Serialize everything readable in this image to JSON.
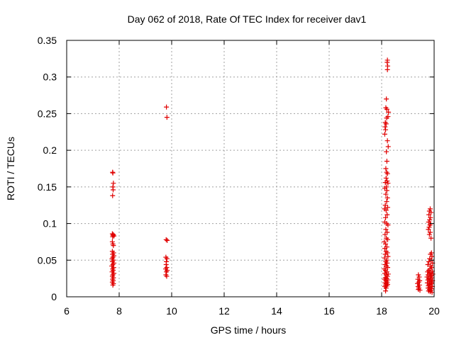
{
  "chart_data": {
    "type": "scatter",
    "title": "Day 062 of 2018, Rate Of TEC Index for receiver dav1",
    "xlabel": "GPS time / hours",
    "ylabel": "ROTI / TECUs",
    "xlim": [
      6,
      20
    ],
    "ylim": [
      0,
      0.35
    ],
    "xticks": [
      6,
      8,
      10,
      12,
      14,
      16,
      18,
      20
    ],
    "xtick_labels": [
      "6",
      "8",
      "10",
      "12",
      "14",
      "16",
      "18",
      "20"
    ],
    "yticks": [
      0,
      0.05,
      0.1,
      0.15,
      0.2,
      0.25,
      0.3,
      0.35
    ],
    "ytick_labels": [
      "0",
      "0.05",
      "0.1",
      "0.15",
      "0.2",
      "0.25",
      "0.3",
      "0.35"
    ],
    "grid": true,
    "marker": "+",
    "color": "#e00000",
    "points": [
      [
        7.75,
        0.17
      ],
      [
        7.76,
        0.169
      ],
      [
        7.78,
        0.155
      ],
      [
        7.76,
        0.15
      ],
      [
        7.77,
        0.146
      ],
      [
        7.75,
        0.138
      ],
      [
        7.74,
        0.086
      ],
      [
        7.78,
        0.085
      ],
      [
        7.76,
        0.084
      ],
      [
        7.8,
        0.083
      ],
      [
        7.75,
        0.082
      ],
      [
        7.74,
        0.075
      ],
      [
        7.76,
        0.072
      ],
      [
        7.78,
        0.07
      ],
      [
        7.74,
        0.062
      ],
      [
        7.79,
        0.06
      ],
      [
        7.75,
        0.058
      ],
      [
        7.8,
        0.056
      ],
      [
        7.76,
        0.054
      ],
      [
        7.73,
        0.052
      ],
      [
        7.78,
        0.05
      ],
      [
        7.74,
        0.048
      ],
      [
        7.8,
        0.046
      ],
      [
        7.76,
        0.044
      ],
      [
        7.72,
        0.042
      ],
      [
        7.79,
        0.04
      ],
      [
        7.75,
        0.038
      ],
      [
        7.77,
        0.036
      ],
      [
        7.73,
        0.034
      ],
      [
        7.8,
        0.032
      ],
      [
        7.76,
        0.03
      ],
      [
        7.74,
        0.028
      ],
      [
        7.78,
        0.026
      ],
      [
        7.75,
        0.024
      ],
      [
        7.77,
        0.022
      ],
      [
        7.74,
        0.02
      ],
      [
        7.78,
        0.018
      ],
      [
        7.76,
        0.016
      ],
      [
        9.8,
        0.259
      ],
      [
        9.82,
        0.245
      ],
      [
        9.79,
        0.078
      ],
      [
        9.83,
        0.077
      ],
      [
        9.78,
        0.054
      ],
      [
        9.82,
        0.052
      ],
      [
        9.8,
        0.048
      ],
      [
        9.79,
        0.044
      ],
      [
        9.81,
        0.04
      ],
      [
        9.77,
        0.038
      ],
      [
        9.83,
        0.036
      ],
      [
        9.8,
        0.034
      ],
      [
        9.78,
        0.03
      ],
      [
        9.81,
        0.028
      ],
      [
        18.22,
        0.323
      ],
      [
        18.21,
        0.32
      ],
      [
        18.23,
        0.315
      ],
      [
        18.22,
        0.31
      ],
      [
        18.18,
        0.27
      ],
      [
        18.16,
        0.258
      ],
      [
        18.2,
        0.256
      ],
      [
        18.26,
        0.252
      ],
      [
        18.24,
        0.246
      ],
      [
        18.19,
        0.244
      ],
      [
        18.14,
        0.238
      ],
      [
        18.17,
        0.236
      ],
      [
        18.13,
        0.232
      ],
      [
        18.15,
        0.228
      ],
      [
        18.12,
        0.222
      ],
      [
        18.22,
        0.213
      ],
      [
        18.25,
        0.205
      ],
      [
        18.18,
        0.198
      ],
      [
        18.2,
        0.185
      ],
      [
        18.16,
        0.175
      ],
      [
        18.19,
        0.17
      ],
      [
        18.22,
        0.168
      ],
      [
        18.17,
        0.162
      ],
      [
        18.21,
        0.158
      ],
      [
        18.14,
        0.156
      ],
      [
        18.24,
        0.155
      ],
      [
        18.18,
        0.15
      ],
      [
        18.12,
        0.148
      ],
      [
        18.2,
        0.145
      ],
      [
        18.16,
        0.14
      ],
      [
        18.22,
        0.135
      ],
      [
        18.19,
        0.13
      ],
      [
        18.14,
        0.125
      ],
      [
        18.23,
        0.122
      ],
      [
        18.11,
        0.12
      ],
      [
        18.17,
        0.118
      ],
      [
        18.21,
        0.112
      ],
      [
        18.15,
        0.108
      ],
      [
        18.12,
        0.102
      ],
      [
        18.19,
        0.1
      ],
      [
        18.24,
        0.098
      ],
      [
        18.16,
        0.092
      ],
      [
        18.21,
        0.088
      ],
      [
        18.13,
        0.085
      ],
      [
        18.18,
        0.08
      ],
      [
        18.23,
        0.078
      ],
      [
        18.1,
        0.075
      ],
      [
        18.15,
        0.072
      ],
      [
        18.2,
        0.068
      ],
      [
        18.12,
        0.066
      ],
      [
        18.17,
        0.062
      ],
      [
        18.22,
        0.06
      ],
      [
        18.14,
        0.058
      ],
      [
        18.24,
        0.055
      ],
      [
        18.11,
        0.053
      ],
      [
        18.19,
        0.05
      ],
      [
        18.16,
        0.048
      ],
      [
        18.21,
        0.046
      ],
      [
        18.13,
        0.044
      ],
      [
        18.18,
        0.042
      ],
      [
        18.23,
        0.04
      ],
      [
        18.1,
        0.038
      ],
      [
        18.15,
        0.036
      ],
      [
        18.2,
        0.034
      ],
      [
        18.12,
        0.032
      ],
      [
        18.25,
        0.031
      ],
      [
        18.17,
        0.03
      ],
      [
        18.22,
        0.028
      ],
      [
        18.14,
        0.026
      ],
      [
        18.19,
        0.025
      ],
      [
        18.11,
        0.024
      ],
      [
        18.24,
        0.023
      ],
      [
        18.16,
        0.022
      ],
      [
        18.21,
        0.02
      ],
      [
        18.13,
        0.019
      ],
      [
        18.18,
        0.018
      ],
      [
        18.23,
        0.017
      ],
      [
        18.15,
        0.016
      ],
      [
        18.2,
        0.015
      ],
      [
        18.12,
        0.014
      ],
      [
        18.17,
        0.012
      ],
      [
        18.15,
        0.008
      ],
      [
        19.4,
        0.03
      ],
      [
        19.43,
        0.027
      ],
      [
        19.38,
        0.024
      ],
      [
        19.45,
        0.022
      ],
      [
        19.41,
        0.02
      ],
      [
        19.37,
        0.018
      ],
      [
        19.44,
        0.016
      ],
      [
        19.39,
        0.014
      ],
      [
        19.42,
        0.012
      ],
      [
        19.4,
        0.01
      ],
      [
        19.46,
        0.009
      ],
      [
        19.85,
        0.12
      ],
      [
        19.82,
        0.117
      ],
      [
        19.88,
        0.115
      ],
      [
        19.8,
        0.112
      ],
      [
        19.86,
        0.108
      ],
      [
        19.83,
        0.105
      ],
      [
        19.79,
        0.102
      ],
      [
        19.87,
        0.1
      ],
      [
        19.84,
        0.098
      ],
      [
        19.81,
        0.095
      ],
      [
        19.78,
        0.092
      ],
      [
        19.85,
        0.088
      ],
      [
        19.82,
        0.085
      ],
      [
        19.88,
        0.08
      ],
      [
        19.9,
        0.06
      ],
      [
        19.86,
        0.058
      ],
      [
        19.92,
        0.055
      ],
      [
        19.83,
        0.052
      ],
      [
        19.89,
        0.05
      ],
      [
        19.8,
        0.048
      ],
      [
        19.94,
        0.046
      ],
      [
        19.76,
        0.044
      ],
      [
        19.87,
        0.042
      ],
      [
        19.91,
        0.04
      ],
      [
        19.84,
        0.038
      ],
      [
        19.79,
        0.036
      ],
      [
        19.93,
        0.035
      ],
      [
        19.75,
        0.034
      ],
      [
        19.88,
        0.033
      ],
      [
        19.82,
        0.032
      ],
      [
        19.95,
        0.031
      ],
      [
        19.77,
        0.03
      ],
      [
        19.9,
        0.029
      ],
      [
        19.85,
        0.028
      ],
      [
        19.73,
        0.027
      ],
      [
        19.92,
        0.026
      ],
      [
        19.8,
        0.025
      ],
      [
        19.87,
        0.024
      ],
      [
        19.76,
        0.023
      ],
      [
        19.94,
        0.022
      ],
      [
        19.83,
        0.021
      ],
      [
        19.89,
        0.02
      ],
      [
        19.74,
        0.019
      ],
      [
        19.91,
        0.018
      ],
      [
        19.81,
        0.017
      ],
      [
        19.86,
        0.016
      ],
      [
        19.78,
        0.015
      ],
      [
        19.93,
        0.014
      ],
      [
        19.84,
        0.013
      ],
      [
        19.77,
        0.012
      ],
      [
        19.9,
        0.011
      ],
      [
        19.82,
        0.01
      ],
      [
        19.88,
        0.009
      ],
      [
        19.79,
        0.008
      ],
      [
        19.85,
        0.007
      ],
      [
        19.92,
        0.006
      ]
    ]
  }
}
